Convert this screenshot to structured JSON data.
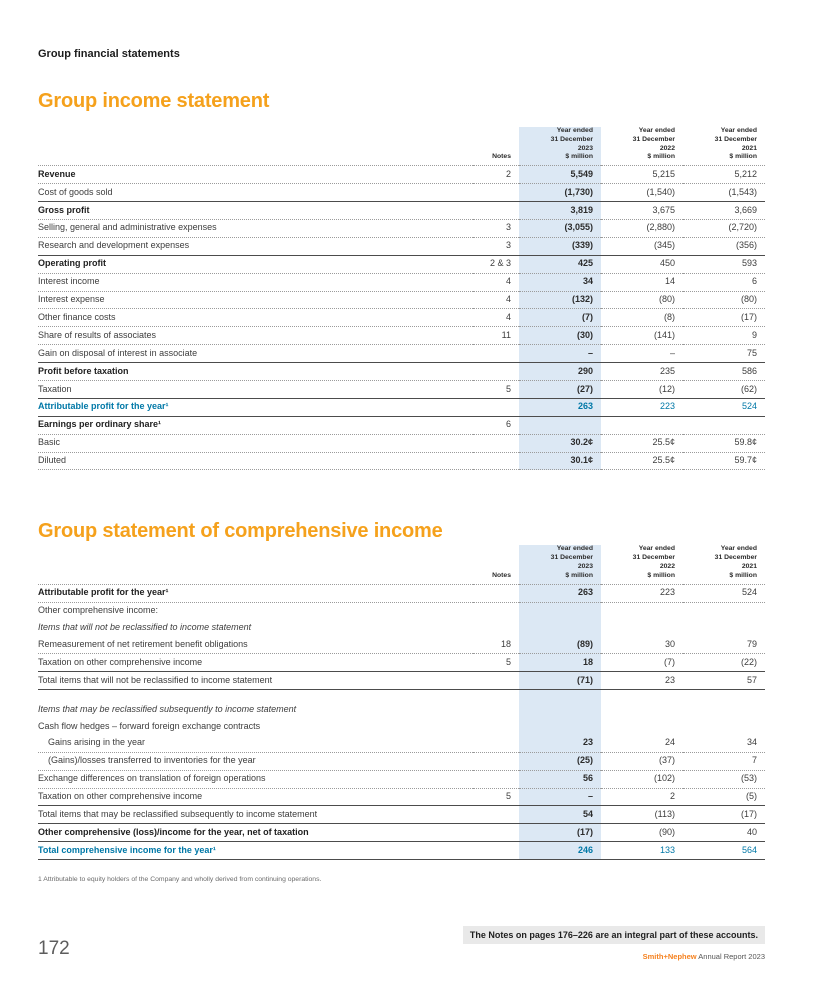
{
  "colors": {
    "accent_orange": "#f5a11c",
    "brand_orange": "#f58220",
    "teal_text": "#0078a7",
    "highlight_blue": "#dce8f4"
  },
  "page": {
    "section_label": "Group financial statements",
    "footnote": "1   Attributable to equity holders of the Company and wholly derived from continuing operations.",
    "notes_banner": "The Notes on pages 176–226 are an integral part of these accounts.",
    "page_number": "172",
    "footer_brand": "Smith+Nephew",
    "footer_suffix": " Annual Report 2023"
  },
  "tables": [
    {
      "id": "income",
      "title": "Group income statement",
      "notes_label": "Notes",
      "bottom": "dotted",
      "columns": [
        {
          "lines": [
            "Year ended",
            "31 December",
            "2023",
            "$ million"
          ],
          "highlight": true
        },
        {
          "lines": [
            "Year ended",
            "31 December",
            "2022",
            "$ million"
          ]
        },
        {
          "lines": [
            "Year ended",
            "31 December",
            "2021",
            "$ million"
          ]
        }
      ],
      "rows": [
        {
          "label": "Revenue",
          "note": "2",
          "values": [
            "5,549",
            "5,215",
            "5,212"
          ],
          "bold": true,
          "top": "none"
        },
        {
          "label": "Cost of goods sold",
          "note": "",
          "values": [
            "(1,730)",
            "(1,540)",
            "(1,543)"
          ],
          "top": "dotted"
        },
        {
          "label": "Gross profit",
          "note": "",
          "values": [
            "3,819",
            "3,675",
            "3,669"
          ],
          "bold": true,
          "top": "solid"
        },
        {
          "label": "Selling, general and administrative expenses",
          "note": "3",
          "values": [
            "(3,055)",
            "(2,880)",
            "(2,720)"
          ],
          "top": "dotted"
        },
        {
          "label": "Research and development expenses",
          "note": "3",
          "values": [
            "(339)",
            "(345)",
            "(356)"
          ],
          "top": "dotted"
        },
        {
          "label": "Operating profit",
          "note": "2 & 3",
          "values": [
            "425",
            "450",
            "593"
          ],
          "bold": true,
          "top": "solid"
        },
        {
          "label": "Interest income",
          "note": "4",
          "values": [
            "34",
            "14",
            "6"
          ],
          "top": "dotted"
        },
        {
          "label": "Interest expense",
          "note": "4",
          "values": [
            "(132)",
            "(80)",
            "(80)"
          ],
          "top": "dotted"
        },
        {
          "label": "Other finance costs",
          "note": "4",
          "values": [
            "(7)",
            "(8)",
            "(17)"
          ],
          "top": "dotted"
        },
        {
          "label": "Share of results of associates",
          "note": "11",
          "values": [
            "(30)",
            "(141)",
            "9"
          ],
          "top": "dotted"
        },
        {
          "label": "Gain on disposal of interest in associate",
          "note": "",
          "values": [
            "–",
            "–",
            "75"
          ],
          "top": "dotted"
        },
        {
          "label": "Profit before taxation",
          "note": "",
          "values": [
            "290",
            "235",
            "586"
          ],
          "bold": true,
          "top": "solid"
        },
        {
          "label": "Taxation",
          "note": "5",
          "values": [
            "(27)",
            "(12)",
            "(62)"
          ],
          "top": "dotted"
        },
        {
          "label": "Attributable profit for the year¹",
          "note": "",
          "values": [
            "263",
            "223",
            "524"
          ],
          "bold": true,
          "teal": true,
          "top": "solid"
        },
        {
          "label": "Earnings per ordinary share¹",
          "note": "6",
          "values": [
            "",
            "",
            ""
          ],
          "bold": true,
          "top": "solid"
        },
        {
          "label": "Basic",
          "note": "",
          "values": [
            "30.2¢",
            "25.5¢",
            "59.8¢"
          ],
          "top": "dotted"
        },
        {
          "label": "Diluted",
          "note": "",
          "values": [
            "30.1¢",
            "25.5¢",
            "59.7¢"
          ],
          "top": "dotted"
        }
      ]
    },
    {
      "id": "comprehensive",
      "title": "Group statement of comprehensive income",
      "notes_label": "Notes",
      "bottom": "solid",
      "columns": [
        {
          "lines": [
            "Year ended",
            "31 December",
            "2023",
            "$ million"
          ],
          "highlight": true
        },
        {
          "lines": [
            "Year ended",
            "31 December",
            "2022",
            "$ million"
          ]
        },
        {
          "lines": [
            "Year ended",
            "31 December",
            "2021",
            "$ million"
          ]
        }
      ],
      "rows": [
        {
          "label": "Attributable profit for the year¹",
          "note": "",
          "values": [
            "263",
            "223",
            "524"
          ],
          "bold": true,
          "top": "none"
        },
        {
          "label": "Other comprehensive income:",
          "note": "",
          "values": [
            "",
            "",
            ""
          ],
          "top": "dotted"
        },
        {
          "label": "Items that will not be reclassified to income statement",
          "note": "",
          "values": [
            "",
            "",
            ""
          ],
          "italic": true,
          "top": "none"
        },
        {
          "label": "Remeasurement of net retirement benefit obligations",
          "note": "18",
          "values": [
            "(89)",
            "30",
            "79"
          ],
          "top": "none"
        },
        {
          "label": "Taxation on other comprehensive income",
          "note": "5",
          "values": [
            "18",
            "(7)",
            "(22)"
          ],
          "top": "dotted"
        },
        {
          "label": "Total items that will not be reclassified to income statement",
          "note": "",
          "values": [
            "(71)",
            "23",
            "57"
          ],
          "top": "solid"
        },
        {
          "spacer": true,
          "label": "",
          "note": "",
          "values": [
            "",
            "",
            ""
          ],
          "top": "solid"
        },
        {
          "label": "Items that may be reclassified subsequently to income statement",
          "note": "",
          "values": [
            "",
            "",
            ""
          ],
          "italic": true,
          "top": "none"
        },
        {
          "label": "Cash flow hedges – forward foreign exchange contracts",
          "note": "",
          "values": [
            "",
            "",
            ""
          ],
          "top": "none"
        },
        {
          "label": "Gains arising in the year",
          "note": "",
          "values": [
            "23",
            "24",
            "34"
          ],
          "indent": true,
          "top": "none"
        },
        {
          "label": "(Gains)/losses transferred to inventories for the year",
          "note": "",
          "values": [
            "(25)",
            "(37)",
            "7"
          ],
          "indent": true,
          "top": "dotted"
        },
        {
          "label": "Exchange differences on translation of foreign operations",
          "note": "",
          "values": [
            "56",
            "(102)",
            "(53)"
          ],
          "top": "dotted"
        },
        {
          "label": "Taxation on other comprehensive income",
          "note": "5",
          "values": [
            "–",
            "2",
            "(5)"
          ],
          "top": "dotted"
        },
        {
          "label": "Total items that may be reclassified subsequently to income statement",
          "note": "",
          "values": [
            "54",
            "(113)",
            "(17)"
          ],
          "top": "solid"
        },
        {
          "label": "Other comprehensive (loss)/income for the year, net of taxation",
          "note": "",
          "values": [
            "(17)",
            "(90)",
            "40"
          ],
          "bold": true,
          "top": "solid"
        },
        {
          "label": "Total comprehensive income for the year¹",
          "note": "",
          "values": [
            "246",
            "133",
            "564"
          ],
          "bold": true,
          "teal": true,
          "top": "solid"
        }
      ]
    }
  ]
}
